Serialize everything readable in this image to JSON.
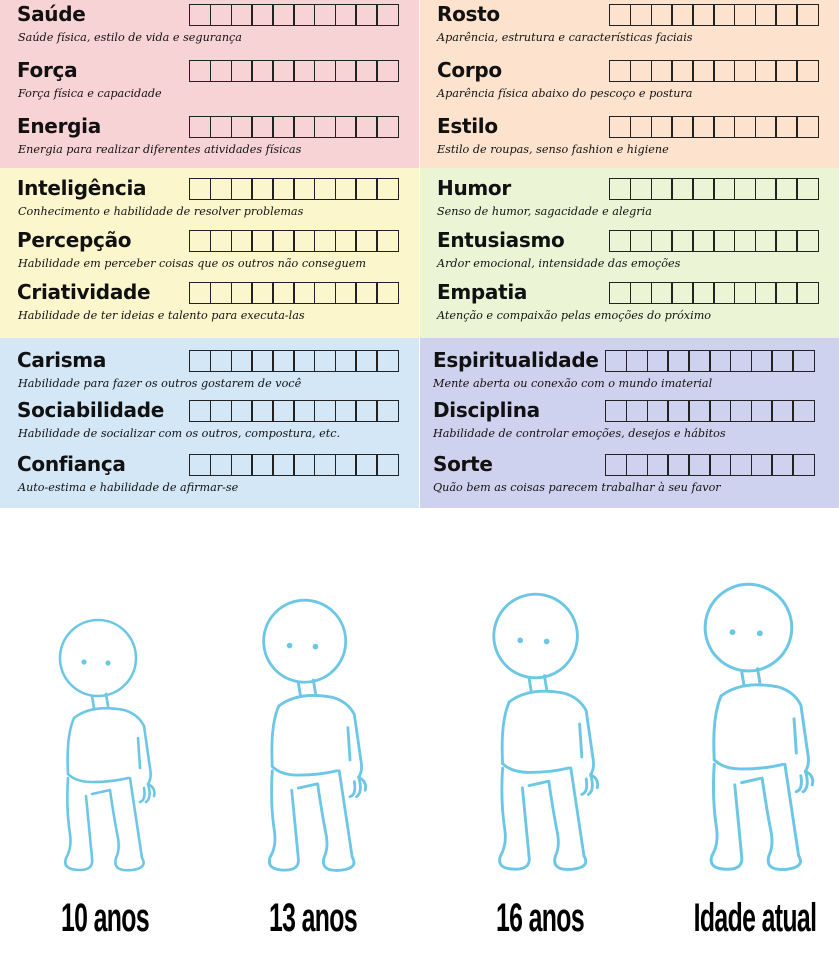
{
  "colors": {
    "physical_left": "#f8d3d6",
    "physical_right": "#fde3cd",
    "mental_left": "#fcf6cc",
    "mental_right": "#ebf5d6",
    "social_left": "#d4e7f7",
    "social_right": "#cfd2ee",
    "figure_stroke": "#6cc7e6"
  },
  "stats": {
    "left": [
      [
        {
          "name": "Saúde",
          "desc": "Saúde física, estilo de vida e segurança"
        },
        {
          "name": "Força",
          "desc": "Força física e capacidade"
        },
        {
          "name": "Energia",
          "desc": "Energia para realizar diferentes atividades físicas"
        }
      ],
      [
        {
          "name": "Inteligência",
          "desc": "Conhecimento e habilidade de resolver problemas"
        },
        {
          "name": "Percepção",
          "desc": "Habilidade em perceber coisas que os outros não conseguem"
        },
        {
          "name": "Criatividade",
          "desc": "Habilidade de ter ideias e talento para executa-las"
        }
      ],
      [
        {
          "name": "Carisma",
          "desc": "Habilidade para fazer os outros gostarem de você"
        },
        {
          "name": "Sociabilidade",
          "desc": "Habilidade de socializar com os outros, compostura, etc."
        },
        {
          "name": "Confiança",
          "desc": "Auto-estima e habilidade de afirmar-se"
        }
      ]
    ],
    "right": [
      [
        {
          "name": "Rosto",
          "desc": "Aparência, estrutura e características faciais"
        },
        {
          "name": "Corpo",
          "desc": "Aparência física abaixo do pescoço e postura"
        },
        {
          "name": "Estilo",
          "desc": "Estilo de roupas, senso fashion e higiene"
        }
      ],
      [
        {
          "name": "Humor",
          "desc": "Senso de humor, sagacidade e alegria"
        },
        {
          "name": "Entusiasmo",
          "desc": "Ardor emocional, intensidade das emoções"
        },
        {
          "name": "Empatia",
          "desc": "Atenção e compaixão pelas emoções do próximo"
        }
      ],
      [
        {
          "name": "Espiritualidade",
          "desc": "Mente aberta ou conexão com o mundo imaterial"
        },
        {
          "name": "Disciplina",
          "desc": "Habilidade de controlar emoções, desejos e hábitos"
        },
        {
          "name": "Sorte",
          "desc": "Quão bem as coisas parecem trabalhar à seu favor"
        }
      ]
    ]
  },
  "ages": [
    "10 anos",
    "13 anos",
    "16 anos",
    "Idade atual"
  ]
}
